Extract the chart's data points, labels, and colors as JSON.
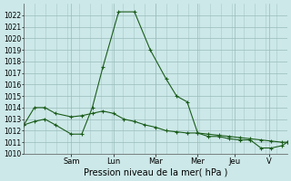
{
  "xlabel": "Pression niveau de la mer( hPa )",
  "bg_color": "#cce8e8",
  "grid_color": "#99bbbb",
  "line_color": "#1a5c1a",
  "ylim": [
    1010,
    1023
  ],
  "yticks": [
    1010,
    1011,
    1012,
    1013,
    1014,
    1015,
    1016,
    1017,
    1018,
    1019,
    1020,
    1021,
    1022
  ],
  "day_labels": [
    "Sam",
    "Lun",
    "Mar",
    "Mer",
    "Jeu",
    "V"
  ],
  "day_positions": [
    0.18,
    0.34,
    0.5,
    0.66,
    0.8,
    0.93
  ],
  "series1_x": [
    0.0,
    0.04,
    0.08,
    0.12,
    0.18,
    0.22,
    0.26,
    0.3,
    0.34,
    0.38,
    0.42,
    0.46,
    0.5,
    0.54,
    0.58,
    0.62,
    0.66,
    0.7,
    0.74,
    0.78,
    0.82,
    0.86,
    0.9,
    0.94,
    0.98,
    1.0
  ],
  "series1_y": [
    1012.5,
    1014.0,
    1014.0,
    1013.5,
    1013.2,
    1013.3,
    1013.5,
    1013.7,
    1013.5,
    1013.0,
    1012.8,
    1012.5,
    1012.3,
    1012.0,
    1011.9,
    1011.8,
    1011.8,
    1011.7,
    1011.6,
    1011.5,
    1011.4,
    1011.3,
    1011.2,
    1011.1,
    1011.0,
    1011.0
  ],
  "series2_x": [
    0.0,
    0.04,
    0.08,
    0.12,
    0.18,
    0.22,
    0.26,
    0.3,
    0.36,
    0.42,
    0.48,
    0.54,
    0.58,
    0.62,
    0.66,
    0.7,
    0.74,
    0.78,
    0.82,
    0.86,
    0.9,
    0.94,
    0.98,
    1.0
  ],
  "series2_y": [
    1012.5,
    1012.8,
    1013.0,
    1012.5,
    1011.7,
    1011.7,
    1014.0,
    1017.5,
    1022.3,
    1022.3,
    1019.0,
    1016.5,
    1015.0,
    1014.5,
    1011.8,
    1011.5,
    1011.5,
    1011.3,
    1011.2,
    1011.2,
    1010.5,
    1010.5,
    1010.7,
    1011.0
  ],
  "fontsize_xlabel": 7,
  "fontsize_ytick": 5.5,
  "fontsize_xtick": 6
}
